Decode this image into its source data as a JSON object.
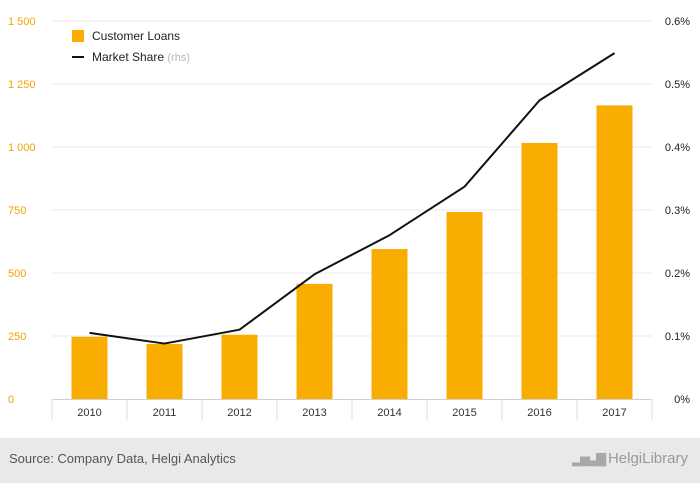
{
  "chart_data": {
    "type": "bar",
    "categories": [
      "2010",
      "2011",
      "2012",
      "2013",
      "2014",
      "2015",
      "2016",
      "2017"
    ],
    "series": [
      {
        "name": "Customer Loans",
        "kind": "bar",
        "axis": "left",
        "values": [
          247,
          218,
          255,
          457,
          595,
          742,
          1016,
          1165
        ]
      },
      {
        "name": "Market Share",
        "kind": "line",
        "axis": "right",
        "values": [
          0.105,
          0.088,
          0.11,
          0.198,
          0.26,
          0.337,
          0.474,
          0.549
        ]
      }
    ],
    "legend": {
      "position": "top-left",
      "items": [
        {
          "label": "Customer Loans",
          "note": ""
        },
        {
          "label": "Market Share",
          "note": "(rhs)"
        }
      ]
    },
    "ylim": [
      0,
      1500
    ],
    "yticks": [
      "0",
      "250",
      "500",
      "750",
      "1 000",
      "1 250",
      "1 500"
    ],
    "y2lim": [
      0,
      0.6
    ],
    "y2ticks": [
      "0%",
      "0.1%",
      "0.2%",
      "0.3%",
      "0.4%",
      "0.5%",
      "0.6%"
    ],
    "grid": "horizontal",
    "colors": {
      "bars": "#f9ad00",
      "line": "#111111",
      "left_ticks": "#f0a500",
      "grid": "#e8e8e8"
    }
  },
  "footer": {
    "source": "Source: Company Data, Helgi Analytics",
    "logo_text": "HelgiLibrary",
    "logo_icon": "chart-logo-icon"
  }
}
